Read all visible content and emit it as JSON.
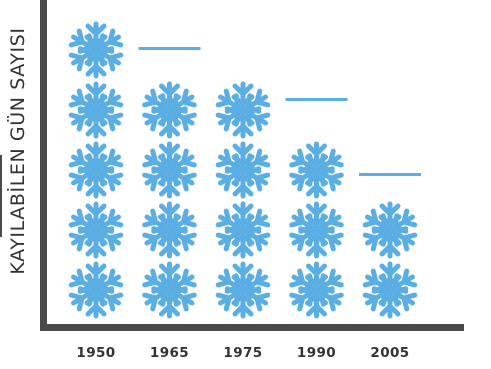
{
  "chart_data": {
    "type": "bar",
    "categories": [
      "1950",
      "1965",
      "1975",
      "1990",
      "2005"
    ],
    "values": [
      5,
      4.55,
      4,
      3.7,
      2.45
    ],
    "title": "",
    "xlabel": "",
    "ylabel": "KAYILABİLEN GÜN SAYISI",
    "unit_icon": "snowflake-icon",
    "colors": {
      "snowflake": "#5aaee3",
      "axis": "#4a4a4a",
      "text": "#333333"
    }
  }
}
